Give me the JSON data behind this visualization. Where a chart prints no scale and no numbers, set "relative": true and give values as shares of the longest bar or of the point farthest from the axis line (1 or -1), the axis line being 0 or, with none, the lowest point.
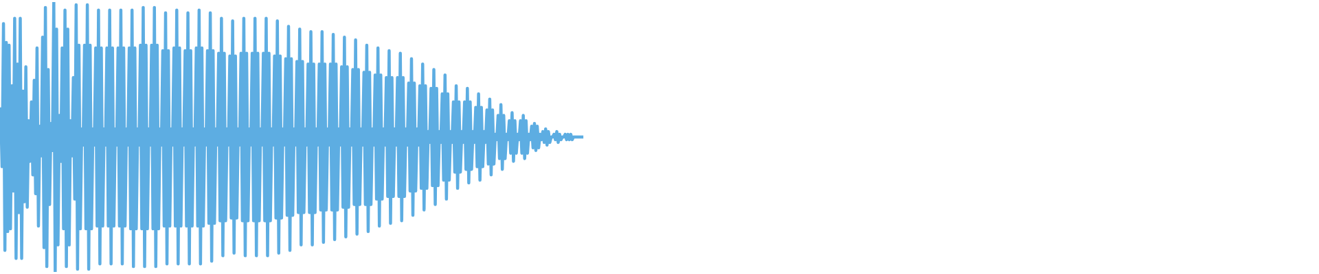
{
  "chart_data": {
    "type": "line",
    "relative": true,
    "categories": [
      null,
      null,
      null,
      null,
      null,
      null,
      null,
      null,
      null,
      null,
      null,
      null,
      null,
      null,
      null,
      null,
      null,
      null,
      null,
      null,
      null,
      null,
      null,
      null,
      null,
      null,
      null,
      null,
      null,
      null,
      null,
      null,
      null,
      null,
      null,
      null,
      null,
      null,
      null,
      null,
      null,
      null,
      null,
      null,
      null,
      null,
      null,
      null,
      null,
      null,
      null,
      null,
      null,
      null,
      null,
      null,
      null,
      null,
      null,
      null,
      null,
      null,
      null,
      null,
      null,
      null,
      null,
      null,
      null,
      null,
      null,
      null,
      null,
      null,
      null,
      null,
      null,
      null,
      null,
      null,
      null,
      null,
      null,
      null,
      null,
      null,
      null,
      null,
      null,
      null,
      null,
      null,
      null,
      null,
      null,
      null,
      null,
      null,
      null,
      null,
      null,
      null,
      null,
      null,
      null,
      null,
      null,
      null,
      null,
      null,
      null,
      null,
      null,
      null,
      null,
      null,
      null,
      null,
      null,
      null,
      null,
      null,
      null,
      null,
      null,
      null,
      null,
      null,
      null,
      null,
      null,
      null,
      null,
      null,
      null,
      null,
      null,
      null,
      null,
      null,
      null,
      null,
      null,
      null,
      null,
      null,
      null,
      null,
      null,
      null,
      null,
      null,
      null,
      null,
      null,
      null,
      null,
      null,
      null,
      null,
      null,
      null,
      null,
      null,
      null,
      null,
      null,
      null,
      null,
      null,
      null,
      null,
      null,
      null,
      null,
      null,
      null,
      null,
      null,
      null,
      null,
      null,
      null,
      null,
      null,
      null,
      null,
      null,
      null,
      null,
      null,
      null,
      null,
      null,
      null,
      null,
      null,
      null,
      null,
      null,
      null,
      null,
      null,
      null,
      null,
      null,
      null,
      null,
      null,
      null,
      null,
      null,
      null,
      null,
      null,
      null,
      null,
      null,
      null,
      null,
      null,
      null,
      null,
      null,
      null,
      null,
      null,
      null,
      null,
      null,
      null,
      null,
      null,
      null,
      null,
      null,
      null,
      null,
      null,
      null,
      null,
      null,
      null,
      null,
      null,
      null,
      null,
      null,
      null,
      null,
      null,
      null,
      null,
      null,
      null,
      null,
      null,
      null,
      null,
      null,
      null,
      null,
      null,
      null,
      null,
      null,
      null,
      null,
      null,
      null,
      null,
      null,
      null,
      null,
      null,
      null,
      null,
      null,
      null,
      null,
      null,
      null,
      null,
      null,
      null,
      null,
      null,
      null,
      null,
      null,
      null,
      null,
      null,
      null,
      null,
      null,
      null,
      null,
      null,
      null,
      null,
      null,
      null,
      null,
      null,
      null,
      null,
      null,
      null,
      null,
      null,
      null,
      null,
      null,
      null,
      null,
      null,
      null,
      null,
      null,
      null,
      null,
      null,
      null,
      null,
      null,
      null,
      null,
      null,
      null,
      null,
      null,
      null,
      null,
      null,
      null,
      null,
      null,
      null,
      null,
      null,
      null,
      null,
      null,
      null,
      null,
      null,
      null,
      null,
      null,
      null,
      null,
      null,
      null,
      null,
      null,
      null,
      null,
      null,
      null,
      null,
      null,
      null,
      null,
      null,
      null,
      null,
      null,
      null,
      null,
      null,
      null,
      null,
      null,
      null,
      null,
      null,
      null,
      null,
      null,
      null,
      null,
      null,
      null,
      null,
      null,
      null,
      null,
      null,
      null,
      null,
      null,
      null,
      null,
      null,
      null,
      null,
      null,
      null,
      null,
      null,
      null,
      null,
      null,
      null,
      null,
      null,
      null,
      null,
      null,
      null,
      null,
      null,
      null,
      null,
      null,
      null,
      null,
      null,
      null,
      null,
      null,
      null,
      null,
      null,
      null,
      null,
      null,
      null,
      null,
      null,
      null,
      null,
      null,
      null,
      null,
      null,
      null,
      null,
      null,
      null,
      null,
      null,
      null,
      null,
      null,
      null,
      null,
      null,
      null,
      null,
      null,
      null,
      null,
      null,
      null,
      null,
      null,
      null,
      null,
      null,
      null,
      null,
      null,
      null,
      null,
      null,
      null,
      null,
      null,
      null,
      null,
      null,
      null,
      null,
      null,
      null,
      null,
      null,
      null,
      null,
      null,
      null,
      null,
      null,
      null,
      null,
      null,
      null,
      null,
      null,
      null,
      null,
      null,
      null,
      null,
      null,
      null,
      null,
      null,
      null,
      null,
      null,
      null,
      null,
      null,
      null,
      null,
      null,
      null,
      null,
      null,
      null,
      null,
      null,
      null,
      null,
      null,
      null,
      null,
      null,
      null,
      null,
      null,
      null,
      null,
      null,
      null,
      null,
      null,
      null,
      null,
      null,
      null,
      null,
      null,
      null,
      null,
      null,
      null,
      null,
      null,
      null,
      null,
      null,
      null,
      null,
      null,
      null,
      null,
      null,
      null,
      null,
      null,
      null,
      null,
      null,
      null,
      null,
      null,
      null,
      null,
      null,
      null,
      null,
      null,
      null,
      null,
      null,
      null,
      null,
      null,
      null,
      null,
      null,
      null,
      null,
      null,
      null,
      null,
      null,
      null,
      null,
      null,
      null,
      null,
      null,
      null,
      null,
      null,
      null,
      null,
      null,
      null,
      null,
      null,
      null,
      null,
      null,
      null,
      null,
      null,
      null,
      null,
      null,
      null,
      null,
      null,
      null,
      null,
      null,
      null,
      null,
      null,
      null,
      null,
      null,
      null,
      null,
      null,
      null,
      null,
      null,
      null,
      null,
      null,
      null,
      null,
      null,
      null,
      null,
      null,
      null,
      null,
      null,
      null,
      null,
      null,
      null,
      null,
      null,
      null,
      null,
      null,
      null,
      null,
      null,
      null,
      null,
      null,
      null,
      null,
      null,
      null,
      null,
      null,
      null,
      null,
      null,
      null,
      null,
      null,
      null,
      null,
      null,
      null,
      null,
      null,
      null,
      null,
      null,
      null,
      null,
      null,
      null,
      null,
      null,
      null,
      null,
      null,
      null,
      null,
      null,
      null,
      null,
      null,
      null,
      null,
      null,
      null,
      null,
      null,
      null,
      null,
      null,
      null,
      null,
      null,
      null,
      null,
      null,
      null,
      null,
      null,
      null,
      null,
      null,
      null,
      null,
      null,
      null,
      null,
      null,
      null,
      null,
      null,
      null,
      null,
      null,
      null,
      null,
      null,
      null,
      null,
      null,
      null,
      null,
      null,
      null,
      null,
      null,
      null,
      null,
      null,
      null,
      null,
      null,
      null,
      null,
      null,
      null,
      null,
      null,
      null,
      null,
      null,
      null,
      null,
      null,
      null,
      null,
      null,
      null,
      null,
      null,
      null,
      null,
      null,
      null,
      null,
      null,
      null,
      null,
      null,
      null,
      null,
      null,
      null,
      null,
      null,
      null,
      null,
      null,
      null,
      null,
      null,
      null,
      null,
      null,
      null,
      null,
      null,
      null,
      null,
      null,
      null,
      null,
      null,
      null,
      null,
      null,
      null,
      null,
      null,
      null,
      null,
      null,
      null,
      null,
      null,
      null,
      null,
      null,
      null,
      null,
      null,
      null,
      null,
      null,
      null,
      null,
      null,
      null,
      null,
      null,
      null,
      null,
      null,
      null,
      null,
      null,
      null,
      null,
      null,
      null,
      null,
      null,
      null,
      null,
      null,
      null,
      null,
      null,
      null,
      null,
      null,
      null,
      null,
      null,
      null,
      null,
      null,
      null,
      null,
      null,
      null,
      null,
      null,
      null,
      null,
      null,
      null,
      null,
      null,
      null,
      null,
      null,
      null,
      null,
      null,
      null,
      null,
      null,
      null,
      null,
      null,
      null,
      null,
      null,
      null,
      null,
      null,
      null,
      null,
      null,
      null,
      null,
      null,
      null,
      null,
      null,
      null,
      null,
      null,
      null,
      null,
      null,
      null,
      null,
      null,
      null,
      null,
      null,
      null,
      null,
      null,
      null,
      null,
      null,
      null,
      null,
      null,
      null,
      null,
      null,
      null,
      null,
      null,
      null,
      null,
      null,
      null,
      null,
      null,
      null,
      null,
      null,
      null,
      null,
      null,
      null,
      null,
      null,
      null,
      null,
      null,
      null,
      null,
      null,
      null,
      null,
      null,
      null,
      null,
      null,
      null,
      null,
      null,
      null,
      null,
      null,
      null,
      null,
      null
    ],
    "series": [
      {
        "color": "#5dade2",
        "values": [
          0.61,
          0.39,
          0.92,
          0.08,
          0.85,
          0.15,
          0.84,
          0.16,
          0.69,
          0.3,
          0.94,
          0.05,
          0.77,
          0.22,
          0.94,
          0.05,
          0.67,
          0.26,
          0.76,
          0.24,
          0.56,
          0.41,
          0.63,
          0.36,
          0.71,
          0.29,
          0.83,
          0.17,
          0.54,
          0.43,
          0.87,
          0.09,
          0.98,
          0.02,
          0.75,
          0.25,
          0.55,
          0.45,
          1,
          0,
          0.9,
          0.1,
          0.58,
          0.41,
          0.83,
          0.16,
          0.97,
          0.02,
          0.9,
          0.1,
          0.56,
          0.43,
          0.72,
          0.27,
          0.99,
          0.01,
          0.84,
          0.16,
          0.53,
          0.47,
          0.84,
          0.16,
          0.99,
          0.01,
          0.84,
          0.16,
          0.53,
          0.47,
          0.83,
          0.17,
          0.97,
          0.03,
          0.83,
          0.17,
          0.53,
          0.47,
          0.83,
          0.17,
          0.97,
          0.03,
          0.83,
          0.17,
          0.53,
          0.47,
          0.83,
          0.17,
          0.97,
          0.03,
          0.83,
          0.17,
          0.53,
          0.47,
          0.83,
          0.16,
          0.97,
          0.02,
          0.83,
          0.16,
          0.53,
          0.47,
          0.84,
          0.16,
          0.98,
          0.02,
          0.84,
          0.16,
          0.53,
          0.47,
          0.84,
          0.16,
          0.98,
          0.02,
          0.84,
          0.16,
          0.53,
          0.47,
          0.82,
          0.17,
          0.96,
          0.03,
          0.82,
          0.17,
          0.53,
          0.47,
          0.83,
          0.17,
          0.97,
          0.03,
          0.83,
          0.17,
          0.53,
          0.47,
          0.82,
          0.17,
          0.96,
          0.03,
          0.82,
          0.17,
          0.53,
          0.47,
          0.83,
          0.17,
          0.97,
          0.03,
          0.83,
          0.17,
          0.53,
          0.47,
          0.82,
          0.18,
          0.96,
          0.04,
          0.82,
          0.18,
          0.53,
          0.47,
          0.81,
          0.19,
          0.94,
          0.06,
          0.81,
          0.19,
          0.53,
          0.47,
          0.8,
          0.2,
          0.93,
          0.07,
          0.8,
          0.2,
          0.53,
          0.47,
          0.81,
          0.19,
          0.94,
          0.06,
          0.81,
          0.19,
          0.53,
          0.47,
          0.81,
          0.19,
          0.94,
          0.06,
          0.81,
          0.19,
          0.53,
          0.47,
          0.81,
          0.19,
          0.94,
          0.06,
          0.81,
          0.19,
          0.53,
          0.47,
          0.8,
          0.2,
          0.93,
          0.07,
          0.8,
          0.2,
          0.53,
          0.47,
          0.79,
          0.21,
          0.91,
          0.08,
          0.79,
          0.21,
          0.53,
          0.47,
          0.78,
          0.22,
          0.9,
          0.1,
          0.78,
          0.22,
          0.53,
          0.47,
          0.77,
          0.22,
          0.89,
          0.1,
          0.77,
          0.22,
          0.53,
          0.47,
          0.77,
          0.23,
          0.89,
          0.11,
          0.77,
          0.23,
          0.53,
          0.47,
          0.77,
          0.23,
          0.88,
          0.12,
          0.77,
          0.23,
          0.53,
          0.47,
          0.76,
          0.24,
          0.87,
          0.13,
          0.76,
          0.24,
          0.53,
          0.47,
          0.75,
          0.25,
          0.86,
          0.14,
          0.75,
          0.25,
          0.53,
          0.47,
          0.74,
          0.25,
          0.84,
          0.15,
          0.74,
          0.25,
          0.53,
          0.47,
          0.73,
          0.27,
          0.83,
          0.17,
          0.73,
          0.27,
          0.53,
          0.47,
          0.72,
          0.28,
          0.82,
          0.18,
          0.72,
          0.28,
          0.53,
          0.47,
          0.72,
          0.28,
          0.81,
          0.19,
          0.72,
          0.28,
          0.53,
          0.47,
          0.7,
          0.3,
          0.79,
          0.21,
          0.7,
          0.3,
          0.53,
          0.47,
          0.69,
          0.31,
          0.77,
          0.23,
          0.69,
          0.31,
          0.52,
          0.48,
          0.68,
          0.32,
          0.75,
          0.25,
          0.68,
          0.32,
          0.52,
          0.48,
          0.66,
          0.34,
          0.73,
          0.27,
          0.66,
          0.34,
          0.52,
          0.48,
          0.63,
          0.37,
          0.69,
          0.31,
          0.63,
          0.37,
          0.52,
          0.48,
          0.63,
          0.38,
          0.68,
          0.33,
          0.63,
          0.38,
          0.52,
          0.48,
          0.61,
          0.39,
          0.66,
          0.34,
          0.61,
          0.39,
          0.52,
          0.48,
          0.6,
          0.4,
          0.64,
          0.36,
          0.6,
          0.4,
          0.51,
          0.49,
          0.58,
          0.42,
          0.62,
          0.38,
          0.58,
          0.42,
          0.51,
          0.49,
          0.56,
          0.44,
          0.59,
          0.41,
          0.56,
          0.44,
          0.51,
          0.49,
          0.56,
          0.44,
          0.58,
          0.42,
          0.56,
          0.44,
          0.51,
          0.49,
          0.54,
          0.46,
          0.55,
          0.45,
          0.54,
          0.46,
          0.51,
          0.49,
          0.52,
          0.48,
          0.53,
          0.47,
          0.52,
          0.48,
          0.5,
          0.5,
          0.51,
          0.49,
          0.52,
          0.48,
          0.51,
          0.49,
          0.5,
          0.5,
          0.51,
          0.49,
          0.51,
          0.49,
          0.51,
          0.49,
          0.5,
          0.5,
          0.5,
          0.5,
          0.5,
          0.5,
          0.5,
          0.5,
          null,
          null,
          null,
          null,
          null,
          null,
          null,
          null,
          null,
          null,
          null,
          null,
          null,
          null,
          null,
          null,
          null,
          null,
          null,
          null,
          null,
          null,
          null,
          null,
          null,
          null,
          null,
          null,
          null,
          null,
          null,
          null,
          null,
          null,
          null,
          null,
          null,
          null,
          null,
          null,
          null,
          null,
          null,
          null,
          null,
          null,
          null,
          null,
          null,
          null,
          null,
          null,
          null,
          null,
          null,
          null,
          null,
          null,
          null,
          null,
          null,
          null,
          null,
          null,
          null,
          null,
          null,
          null,
          null,
          null,
          null,
          null,
          null,
          null,
          null,
          null,
          null,
          null,
          null,
          null,
          null,
          null,
          null,
          null,
          null,
          null,
          null,
          null,
          null,
          null,
          null,
          null,
          null,
          null,
          null,
          null,
          null,
          null,
          null,
          null,
          null,
          null,
          null,
          null,
          null,
          null,
          null,
          null,
          null,
          null,
          null,
          null,
          null,
          null,
          null,
          null,
          null,
          null,
          null,
          null,
          null,
          null,
          null,
          null,
          null,
          null,
          null,
          null,
          null,
          null,
          null,
          null,
          null,
          null,
          null,
          null,
          null,
          null,
          null,
          null,
          null,
          null,
          null,
          null,
          null,
          null,
          null,
          null,
          null,
          null,
          null,
          null,
          null,
          null,
          null,
          null,
          null,
          null,
          null,
          null,
          null,
          null,
          null,
          null,
          null,
          null,
          null,
          null,
          null,
          null,
          null,
          null,
          null,
          null,
          null,
          null,
          null,
          null,
          null,
          null,
          null,
          null,
          null,
          null,
          null,
          null,
          null,
          null,
          null,
          null,
          null,
          null,
          null,
          null,
          null,
          null,
          null,
          null,
          null,
          null,
          null,
          null,
          null,
          null,
          null,
          null,
          null,
          null,
          null,
          null,
          null,
          null,
          null,
          null,
          null,
          null,
          null,
          null,
          null,
          null,
          null,
          null,
          null,
          null,
          null,
          null,
          null,
          null,
          null,
          null,
          null,
          null,
          null,
          null,
          null,
          null,
          null,
          null,
          null,
          null,
          null,
          null,
          null,
          null,
          null,
          null,
          null,
          null,
          null,
          null,
          null,
          null,
          null,
          null,
          null,
          null,
          null,
          null,
          null,
          null,
          null,
          null,
          null,
          null,
          null,
          null,
          null,
          null,
          null,
          null,
          null,
          null,
          null,
          null,
          null,
          null,
          null,
          null,
          null,
          null,
          null,
          null,
          null,
          null,
          null,
          null,
          null,
          null,
          null,
          null,
          null,
          null,
          null,
          null,
          null,
          null,
          null,
          null,
          null,
          null,
          null,
          null,
          null,
          null,
          null,
          null,
          null,
          null,
          null,
          null,
          null,
          null,
          null,
          null,
          null,
          null,
          null,
          null,
          null,
          null,
          null,
          null,
          null,
          null,
          null,
          null,
          null,
          null,
          null,
          null,
          null,
          null,
          null,
          null,
          null,
          null,
          null,
          null,
          null,
          null,
          null,
          null,
          null,
          null,
          null,
          null,
          null,
          null,
          null,
          null,
          null,
          null,
          null,
          null,
          null,
          null,
          null,
          null,
          null,
          null,
          null,
          null,
          null,
          null,
          null,
          null,
          null,
          null,
          null,
          null,
          null,
          null,
          null,
          null,
          null,
          null,
          null,
          null,
          null,
          null,
          null,
          null,
          null,
          null,
          null,
          null,
          null,
          null,
          null,
          null,
          null,
          null,
          null,
          null,
          null,
          null,
          null,
          null,
          null,
          null,
          null,
          null,
          null,
          null,
          null,
          null,
          null,
          null,
          null,
          null,
          null,
          null,
          null,
          null,
          null,
          null,
          null,
          null,
          null,
          null,
          null,
          null,
          null,
          null,
          null,
          null,
          null,
          null,
          null,
          null,
          null,
          null,
          null,
          null,
          null,
          null,
          null,
          null,
          null,
          null,
          null,
          null,
          null,
          null,
          null,
          null,
          null,
          null,
          null,
          null,
          null,
          null,
          null,
          null,
          null,
          null,
          null,
          null,
          null,
          null,
          null,
          null,
          null,
          null,
          null,
          null,
          null,
          null,
          null,
          null,
          null,
          null,
          null,
          null,
          null,
          null,
          null,
          null,
          null,
          null,
          null,
          null,
          null,
          null,
          null,
          null,
          null,
          null,
          null,
          null,
          null,
          null,
          null,
          null,
          null,
          null,
          null,
          null,
          null,
          null,
          null,
          null,
          null,
          null,
          null,
          null,
          null,
          null,
          null,
          null,
          null,
          null,
          null,
          null,
          null,
          null,
          null,
          null,
          null,
          null,
          null,
          null,
          null,
          null,
          null,
          null
        ]
      }
    ]
  }
}
